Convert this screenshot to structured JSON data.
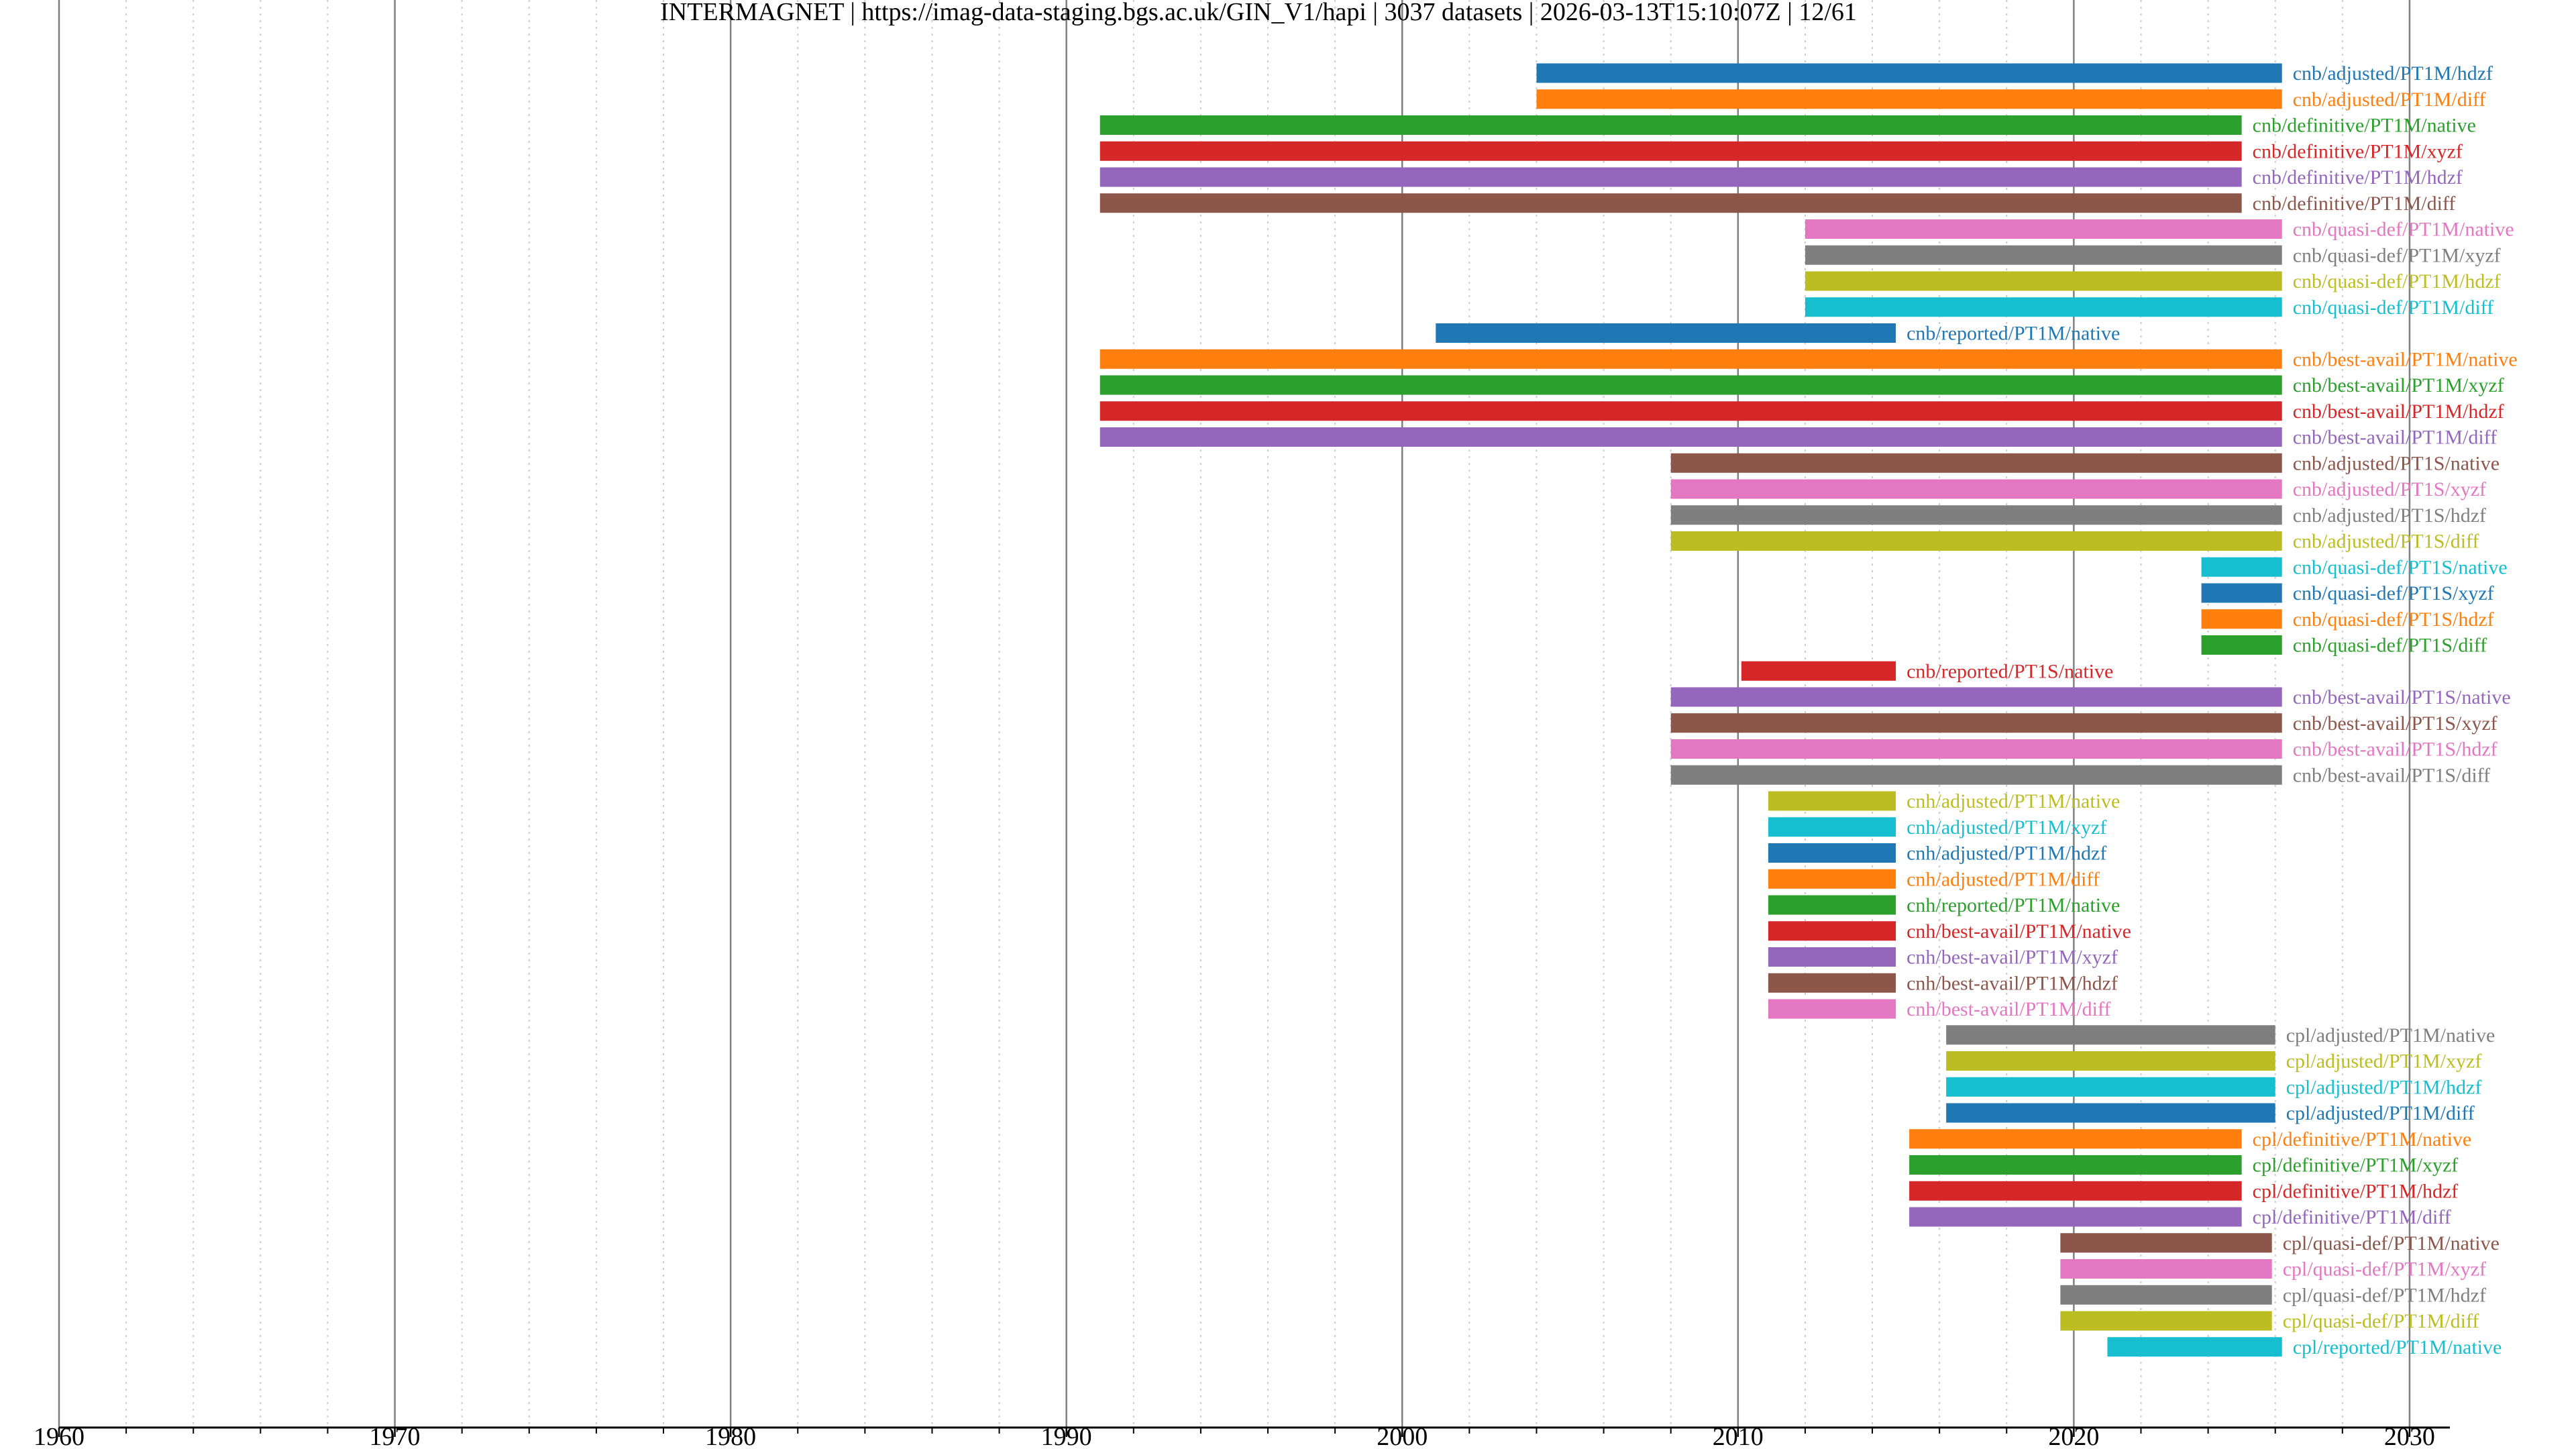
{
  "chart_data": {
    "type": "bar",
    "orientation": "horizontal-timeline",
    "title": "INTERMAGNET | https://imag-data-staging.bgs.ac.uk/GIN_V1/hapi | 3037 datasets | 2026-03-13T15:10:07Z | 12/61",
    "xlabel": "",
    "ylabel": "",
    "xlim": [
      1960,
      2031.2
    ],
    "x_ticks": [
      "1960",
      "1970",
      "1980",
      "1990",
      "2000",
      "2010",
      "2020",
      "2030"
    ],
    "grid": "major solid, minor dotted",
    "palette": [
      "#1f77b4",
      "#ff7f0e",
      "#2ca02c",
      "#d62728",
      "#9467bd",
      "#8c564b",
      "#e377c2",
      "#7f7f7f",
      "#bcbd22",
      "#17becf"
    ],
    "series": [
      {
        "name": "cnb/adjusted/PT1M/hdzf",
        "start": 2004.0,
        "end": 2026.2
      },
      {
        "name": "cnb/adjusted/PT1M/diff",
        "start": 2004.0,
        "end": 2026.2
      },
      {
        "name": "cnb/definitive/PT1M/native",
        "start": 1991.0,
        "end": 2025.0
      },
      {
        "name": "cnb/definitive/PT1M/xyzf",
        "start": 1991.0,
        "end": 2025.0
      },
      {
        "name": "cnb/definitive/PT1M/hdzf",
        "start": 1991.0,
        "end": 2025.0
      },
      {
        "name": "cnb/definitive/PT1M/diff",
        "start": 1991.0,
        "end": 2025.0
      },
      {
        "name": "cnb/quasi-def/PT1M/native",
        "start": 2012.0,
        "end": 2026.2
      },
      {
        "name": "cnb/quasi-def/PT1M/xyzf",
        "start": 2012.0,
        "end": 2026.2
      },
      {
        "name": "cnb/quasi-def/PT1M/hdzf",
        "start": 2012.0,
        "end": 2026.2
      },
      {
        "name": "cnb/quasi-def/PT1M/diff",
        "start": 2012.0,
        "end": 2026.2
      },
      {
        "name": "cnb/reported/PT1M/native",
        "start": 2001.0,
        "end": 2014.7
      },
      {
        "name": "cnb/best-avail/PT1M/native",
        "start": 1991.0,
        "end": 2026.2
      },
      {
        "name": "cnb/best-avail/PT1M/xyzf",
        "start": 1991.0,
        "end": 2026.2
      },
      {
        "name": "cnb/best-avail/PT1M/hdzf",
        "start": 1991.0,
        "end": 2026.2
      },
      {
        "name": "cnb/best-avail/PT1M/diff",
        "start": 1991.0,
        "end": 2026.2
      },
      {
        "name": "cnb/adjusted/PT1S/native",
        "start": 2008.0,
        "end": 2026.2
      },
      {
        "name": "cnb/adjusted/PT1S/xyzf",
        "start": 2008.0,
        "end": 2026.2
      },
      {
        "name": "cnb/adjusted/PT1S/hdzf",
        "start": 2008.0,
        "end": 2026.2
      },
      {
        "name": "cnb/adjusted/PT1S/diff",
        "start": 2008.0,
        "end": 2026.2
      },
      {
        "name": "cnb/quasi-def/PT1S/native",
        "start": 2023.8,
        "end": 2026.2
      },
      {
        "name": "cnb/quasi-def/PT1S/xyzf",
        "start": 2023.8,
        "end": 2026.2
      },
      {
        "name": "cnb/quasi-def/PT1S/hdzf",
        "start": 2023.8,
        "end": 2026.2
      },
      {
        "name": "cnb/quasi-def/PT1S/diff",
        "start": 2023.8,
        "end": 2026.2
      },
      {
        "name": "cnb/reported/PT1S/native",
        "start": 2010.1,
        "end": 2014.7
      },
      {
        "name": "cnb/best-avail/PT1S/native",
        "start": 2008.0,
        "end": 2026.2
      },
      {
        "name": "cnb/best-avail/PT1S/xyzf",
        "start": 2008.0,
        "end": 2026.2
      },
      {
        "name": "cnb/best-avail/PT1S/hdzf",
        "start": 2008.0,
        "end": 2026.2
      },
      {
        "name": "cnb/best-avail/PT1S/diff",
        "start": 2008.0,
        "end": 2026.2
      },
      {
        "name": "cnh/adjusted/PT1M/native",
        "start": 2010.9,
        "end": 2014.7
      },
      {
        "name": "cnh/adjusted/PT1M/xyzf",
        "start": 2010.9,
        "end": 2014.7
      },
      {
        "name": "cnh/adjusted/PT1M/hdzf",
        "start": 2010.9,
        "end": 2014.7
      },
      {
        "name": "cnh/adjusted/PT1M/diff",
        "start": 2010.9,
        "end": 2014.7
      },
      {
        "name": "cnh/reported/PT1M/native",
        "start": 2010.9,
        "end": 2014.7
      },
      {
        "name": "cnh/best-avail/PT1M/native",
        "start": 2010.9,
        "end": 2014.7
      },
      {
        "name": "cnh/best-avail/PT1M/xyzf",
        "start": 2010.9,
        "end": 2014.7
      },
      {
        "name": "cnh/best-avail/PT1M/hdzf",
        "start": 2010.9,
        "end": 2014.7
      },
      {
        "name": "cnh/best-avail/PT1M/diff",
        "start": 2010.9,
        "end": 2014.7
      },
      {
        "name": "cpl/adjusted/PT1M/native",
        "start": 2016.2,
        "end": 2026.0
      },
      {
        "name": "cpl/adjusted/PT1M/xyzf",
        "start": 2016.2,
        "end": 2026.0
      },
      {
        "name": "cpl/adjusted/PT1M/hdzf",
        "start": 2016.2,
        "end": 2026.0
      },
      {
        "name": "cpl/adjusted/PT1M/diff",
        "start": 2016.2,
        "end": 2026.0
      },
      {
        "name": "cpl/definitive/PT1M/native",
        "start": 2015.1,
        "end": 2025.0
      },
      {
        "name": "cpl/definitive/PT1M/xyzf",
        "start": 2015.1,
        "end": 2025.0
      },
      {
        "name": "cpl/definitive/PT1M/hdzf",
        "start": 2015.1,
        "end": 2025.0
      },
      {
        "name": "cpl/definitive/PT1M/diff",
        "start": 2015.1,
        "end": 2025.0
      },
      {
        "name": "cpl/quasi-def/PT1M/native",
        "start": 2019.6,
        "end": 2025.9
      },
      {
        "name": "cpl/quasi-def/PT1M/xyzf",
        "start": 2019.6,
        "end": 2025.9
      },
      {
        "name": "cpl/quasi-def/PT1M/hdzf",
        "start": 2019.6,
        "end": 2025.9
      },
      {
        "name": "cpl/quasi-def/PT1M/diff",
        "start": 2019.6,
        "end": 2025.9
      },
      {
        "name": "cpl/reported/PT1M/native",
        "start": 2021.0,
        "end": 2026.2
      }
    ]
  }
}
